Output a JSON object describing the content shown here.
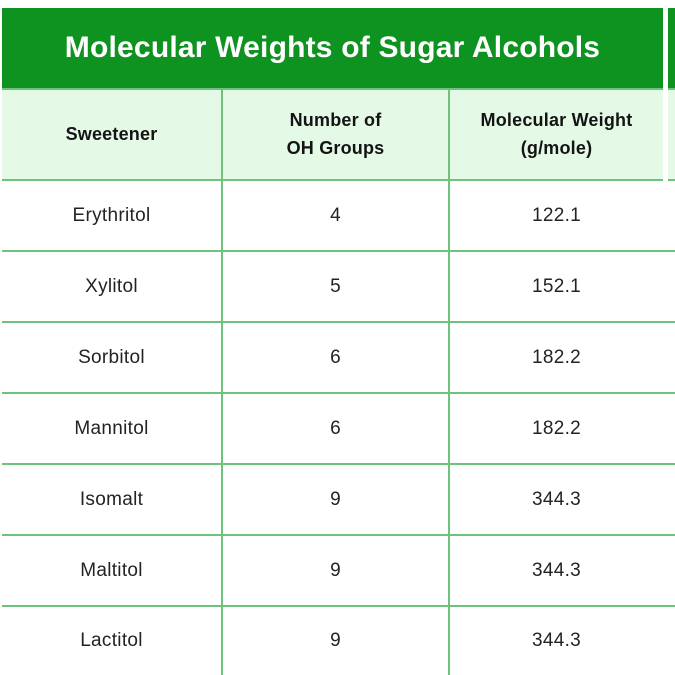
{
  "title_banner": {
    "text": "Molecular Weights of Sugar Alcohols"
  },
  "colors": {
    "banner_green": "#0E9320",
    "header_row_bg": "#E4FAE6",
    "grid_green": "#6FC27C",
    "title_text": "#FFFFFF",
    "header_text": "#141414",
    "body_text": "#232323"
  },
  "table": {
    "headers": [
      {
        "label": "Sweetener"
      },
      {
        "label": "Number of\nOH Groups"
      },
      {
        "label": "Molecular Weight\n(g/mole)"
      }
    ],
    "rows": [
      {
        "sweetener": "Erythritol",
        "oh_groups": "4",
        "mw": "122.1"
      },
      {
        "sweetener": "Xylitol",
        "oh_groups": "5",
        "mw": "152.1"
      },
      {
        "sweetener": "Sorbitol",
        "oh_groups": "6",
        "mw": "182.2"
      },
      {
        "sweetener": "Mannitol",
        "oh_groups": "6",
        "mw": "182.2"
      },
      {
        "sweetener": "Isomalt",
        "oh_groups": "9",
        "mw": "344.3"
      },
      {
        "sweetener": "Maltitol",
        "oh_groups": "9",
        "mw": "344.3"
      },
      {
        "sweetener": "Lactitol",
        "oh_groups": "9",
        "mw": "344.3"
      }
    ]
  },
  "chart_data": {
    "type": "table",
    "title": "Molecular Weights of Sugar Alcohols",
    "columns": [
      "Sweetener",
      "Number of OH Groups",
      "Molecular Weight (g/mole)"
    ],
    "rows": [
      [
        "Erythritol",
        4,
        122.1
      ],
      [
        "Xylitol",
        5,
        152.1
      ],
      [
        "Sorbitol",
        6,
        182.2
      ],
      [
        "Mannitol",
        6,
        182.2
      ],
      [
        "Isomalt",
        9,
        344.3
      ],
      [
        "Maltitol",
        9,
        344.3
      ],
      [
        "Lactitol",
        9,
        344.3
      ]
    ]
  }
}
